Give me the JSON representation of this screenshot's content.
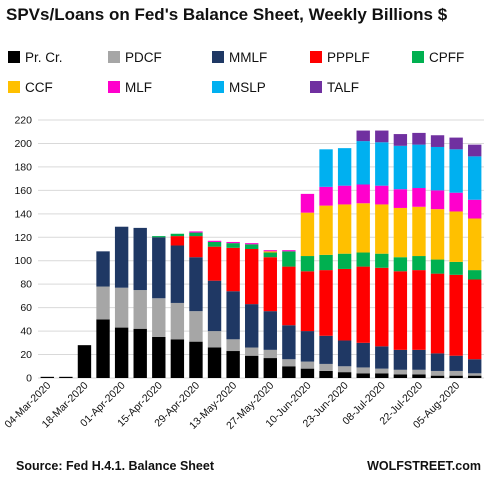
{
  "chart_data": {
    "type": "bar",
    "stacked": true,
    "title": "SPVs/Loans  on Fed's Balance Sheet, Weekly Billions $",
    "source": "Source: Fed H.4.1. Balance Sheet",
    "brand": "WOLFSTREET.com",
    "ylim": [
      0,
      220
    ],
    "yticks": [
      0,
      20,
      40,
      60,
      80,
      100,
      120,
      140,
      160,
      180,
      200,
      220
    ],
    "grid": true,
    "legend_position": "top",
    "categories": [
      "04-Mar-2020",
      "11-Mar-2020",
      "18-Mar-2020",
      "25-Mar-2020",
      "01-Apr-2020",
      "08-Apr-2020",
      "15-Apr-2020",
      "22-Apr-2020",
      "29-Apr-2020",
      "06-May-2020",
      "13-May-2020",
      "20-May-2020",
      "27-May-2020",
      "03-Jun-2020",
      "10-Jun-2020",
      "17-Jun-2020",
      "23-Jun-2020",
      "01-Jul-2020",
      "08-Jul-2020",
      "15-Jul-2020",
      "22-Jul-2020",
      "29-Jul-2020",
      "05-Aug-2020",
      "12-Aug-2020"
    ],
    "x_tick_labels": [
      "04-Mar-2020",
      "18-Mar-2020",
      "01-Apr-2020",
      "15-Apr-2020",
      "29-Apr-2020",
      "13-May-2020",
      "27-May-2020",
      "10-Jun-2020",
      "23-Jun-2020",
      "08-Jul-2020",
      "22-Jul-2020",
      "05-Aug-2020"
    ],
    "series": [
      {
        "name": "Pr. Cr.",
        "color": "#000000",
        "values": [
          1,
          1,
          28,
          50,
          43,
          42,
          35,
          33,
          31,
          26,
          23,
          19,
          17,
          10,
          8,
          6,
          5,
          4,
          4,
          3,
          3,
          2,
          2,
          2
        ]
      },
      {
        "name": "PDCF",
        "color": "#a6a6a6",
        "values": [
          0,
          0,
          0,
          28,
          34,
          33,
          33,
          31,
          26,
          14,
          10,
          7,
          7,
          6,
          6,
          6,
          5,
          5,
          4,
          4,
          4,
          4,
          4,
          2
        ]
      },
      {
        "name": "MMLF",
        "color": "#1f3864",
        "values": [
          0,
          0,
          0,
          30,
          52,
          53,
          52,
          49,
          46,
          43,
          41,
          37,
          33,
          29,
          26,
          24,
          22,
          21,
          19,
          17,
          17,
          15,
          13,
          12
        ]
      },
      {
        "name": "PPPLF",
        "color": "#ff0000",
        "values": [
          0,
          0,
          0,
          0,
          0,
          0,
          0,
          8,
          18,
          29,
          37,
          47,
          46,
          50,
          51,
          56,
          61,
          65,
          67,
          67,
          68,
          68,
          69,
          68
        ]
      },
      {
        "name": "CPFF",
        "color": "#00b050",
        "values": [
          0,
          0,
          0,
          0,
          0,
          0,
          1,
          2,
          3,
          4,
          4,
          4,
          4,
          13,
          13,
          13,
          13,
          12,
          12,
          12,
          12,
          12,
          11,
          8
        ]
      },
      {
        "name": "CCF",
        "color": "#ffc000",
        "values": [
          0,
          0,
          0,
          0,
          0,
          0,
          0,
          0,
          0,
          0,
          0,
          0,
          1,
          0,
          37,
          42,
          42,
          42,
          42,
          42,
          42,
          43,
          43,
          44
        ]
      },
      {
        "name": "MLF",
        "color": "#ff00cc",
        "values": [
          0,
          0,
          0,
          0,
          0,
          0,
          0,
          0,
          1,
          1,
          1,
          1,
          1,
          1,
          16,
          16,
          16,
          16,
          16,
          16,
          16,
          16,
          16,
          16
        ]
      },
      {
        "name": "MSLP",
        "color": "#00b0f0",
        "values": [
          0,
          0,
          0,
          0,
          0,
          0,
          0,
          0,
          0,
          0,
          0,
          0,
          0,
          0,
          0,
          32,
          32,
          37,
          37,
          37,
          37,
          37,
          37,
          37
        ]
      },
      {
        "name": "TALF",
        "color": "#7030a0",
        "values": [
          0,
          0,
          0,
          0,
          0,
          0,
          0,
          0,
          0,
          0,
          0,
          0,
          0,
          0,
          0,
          0,
          0,
          9,
          10,
          10,
          10,
          10,
          10,
          10
        ]
      }
    ]
  }
}
